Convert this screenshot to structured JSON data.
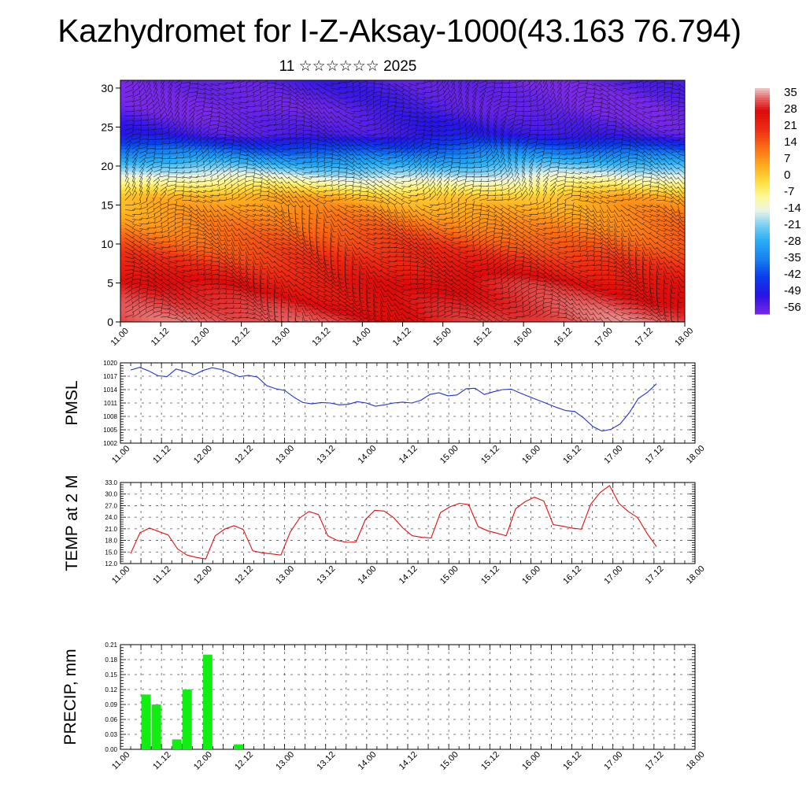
{
  "title": "Kazhydromet for I-Z-Aksay-1000(43.163 76.794)",
  "subtitle": "11 ☆☆☆☆☆☆ 2025",
  "colors": {
    "pmsl_line": "#2233cc",
    "temp_line": "#dd1111",
    "precip_bar": "#11ee11",
    "grid": "#555555"
  },
  "chart_data": [
    {
      "type": "heatmap",
      "name": "upper-air-cross-section",
      "x_ticks": [
        "11.00",
        "11.12",
        "12.00",
        "12.12",
        "13.00",
        "13.12",
        "14.00",
        "14.12",
        "15.00",
        "15.12",
        "16.00",
        "16.12",
        "17.00",
        "17.12",
        "18.00"
      ],
      "y_ticks": [
        0,
        5,
        10,
        15,
        20,
        25,
        30
      ],
      "ylim": [
        0,
        31
      ],
      "colorbar_labels": [
        "35",
        "28",
        "21",
        "14",
        "7",
        "0",
        "-7",
        "-14",
        "-21",
        "-28",
        "-35",
        "-42",
        "-49",
        "-56"
      ],
      "colorbar_range": [
        -60,
        38
      ],
      "wind_barbs": true
    },
    {
      "type": "line",
      "name": "pmsl",
      "ylabel": "PMSL",
      "x_ticks": [
        "11.00",
        "11.12",
        "12.00",
        "12.12",
        "13.00",
        "13.12",
        "14.00",
        "14.12",
        "15.00",
        "15.12",
        "16.00",
        "16.12",
        "17.00",
        "17.12",
        "18.00"
      ],
      "y_ticks": [
        1002,
        1005,
        1008,
        1011,
        1014,
        1017,
        1020
      ],
      "ylim": [
        1002,
        1020
      ],
      "values": [
        1018.4,
        1019.0,
        1018.2,
        1017.1,
        1016.9,
        1018.6,
        1018.1,
        1017.3,
        1018.3,
        1018.9,
        1018.5,
        1017.8,
        1016.9,
        1017.2,
        1016.8,
        1014.9,
        1014.2,
        1013.8,
        1012.3,
        1011.1,
        1010.8,
        1011.1,
        1011.0,
        1010.6,
        1010.7,
        1011.3,
        1011.0,
        1010.3,
        1010.6,
        1011.0,
        1011.2,
        1011.0,
        1011.6,
        1012.9,
        1013.3,
        1012.6,
        1012.8,
        1014.2,
        1014.3,
        1012.9,
        1013.5,
        1014.0,
        1014.1,
        1013.2,
        1012.4,
        1011.6,
        1010.8,
        1010.0,
        1009.3,
        1009.1,
        1007.6,
        1005.7,
        1004.7,
        1005.1,
        1006.3,
        1008.8,
        1012.0,
        1013.4,
        1015.3
      ]
    },
    {
      "type": "line",
      "name": "temp-2m",
      "ylabel": "TEMP at 2 M",
      "x_ticks": [
        "11.00",
        "11.12",
        "12.00",
        "12.12",
        "13.00",
        "13.12",
        "14.00",
        "14.12",
        "15.00",
        "15.12",
        "16.00",
        "16.12",
        "17.00",
        "17.12",
        "18.00"
      ],
      "y_ticks": [
        "12.0",
        "15.0",
        "18.0",
        "21.0",
        "24.0",
        "27.0",
        "30.0",
        "33.0"
      ],
      "ylim": [
        12,
        33
      ],
      "values": [
        14.6,
        20.0,
        21.2,
        20.3,
        19.4,
        15.8,
        14.2,
        13.6,
        13.2,
        19.2,
        20.9,
        21.8,
        20.8,
        15.3,
        14.8,
        14.5,
        14.2,
        20.2,
        23.8,
        25.5,
        24.7,
        19.2,
        18.0,
        17.5,
        17.6,
        23.4,
        25.8,
        25.6,
        23.9,
        21.2,
        19.2,
        18.8,
        18.6,
        25.2,
        26.7,
        27.6,
        27.3,
        21.6,
        20.5,
        19.9,
        19.2,
        26.2,
        28.0,
        29.2,
        28.2,
        22.1,
        21.7,
        21.2,
        20.9,
        27.4,
        30.4,
        32.2,
        27.6,
        25.5,
        23.9,
        19.8,
        16.4
      ]
    },
    {
      "type": "bar",
      "name": "precip",
      "ylabel": "PRECIP, mm",
      "x_ticks": [
        "11.00",
        "11.12",
        "12.00",
        "12.12",
        "13.00",
        "13.12",
        "14.00",
        "14.12",
        "15.00",
        "15.12",
        "16.00",
        "16.12",
        "17.00",
        "17.12",
        "18.00"
      ],
      "y_ticks": [
        "0.00",
        "0.03",
        "0.06",
        "0.09",
        "0.12",
        "0.15",
        "0.18",
        "0.21"
      ],
      "ylim": [
        0,
        0.21
      ],
      "values": [
        0,
        0,
        0.11,
        0.09,
        0,
        0.02,
        0.12,
        0,
        0.19,
        0,
        0,
        0.01,
        0,
        0,
        0,
        0,
        0,
        0,
        0,
        0,
        0,
        0,
        0,
        0,
        0,
        0,
        0,
        0,
        0,
        0,
        0,
        0,
        0,
        0,
        0,
        0,
        0,
        0,
        0,
        0,
        0,
        0,
        0,
        0,
        0,
        0,
        0,
        0,
        0,
        0,
        0,
        0,
        0,
        0,
        0,
        0
      ]
    }
  ]
}
